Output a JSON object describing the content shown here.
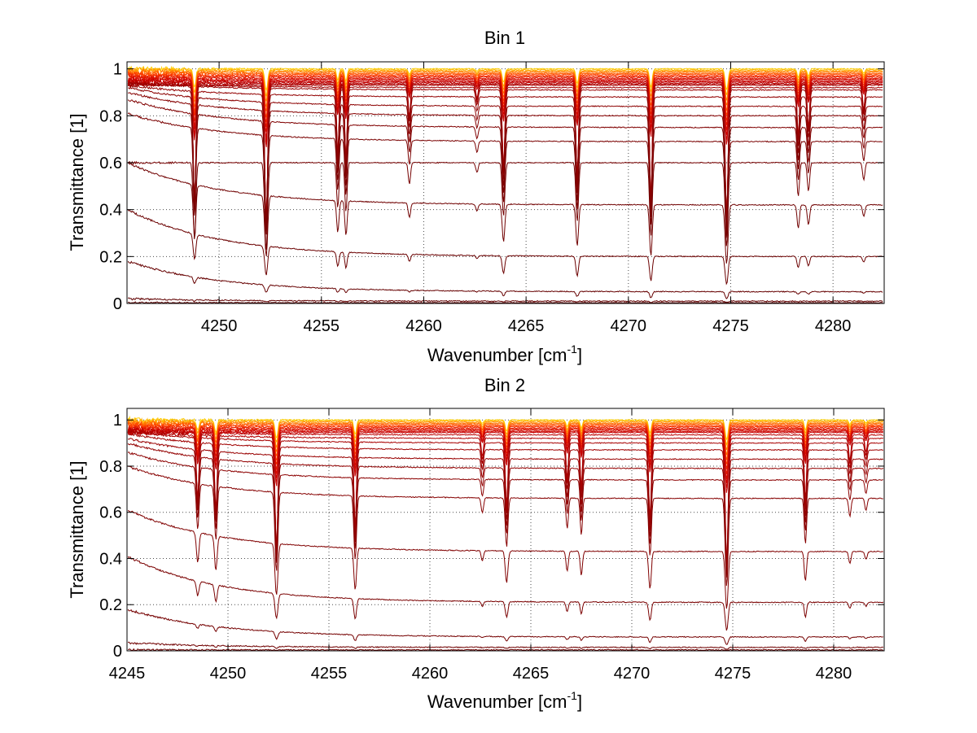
{
  "chart_data": [
    {
      "type": "line",
      "title": "Bin 1",
      "xlabel_main": "Wavenumber [cm",
      "xlabel_sup": "-1",
      "xlabel_end": "]",
      "ylabel": "Transmittance [1]",
      "xlim": [
        4245.5,
        4282.5
      ],
      "ylim": [
        0,
        1.03
      ],
      "xticks": [
        4250,
        4255,
        4260,
        4265,
        4270,
        4275,
        4280
      ],
      "yticks": [
        0,
        0.2,
        0.4,
        0.6,
        0.8,
        1
      ],
      "ytick_labels": [
        "0",
        "0.2",
        "0.4",
        "0.6",
        "0.8",
        "1"
      ],
      "grid": true,
      "baselines": [
        1.0,
        0.995,
        0.99,
        0.985,
        0.98,
        0.975,
        0.97,
        0.965,
        0.96,
        0.955,
        0.95,
        0.945,
        0.94,
        0.935,
        0.93,
        0.92,
        0.91,
        0.88,
        0.84,
        0.8,
        0.75,
        0.69,
        0.6,
        0.42,
        0.2,
        0.05,
        0.01,
        0.003
      ],
      "left_rise": [
        0.0,
        0.0,
        0.0,
        0.0,
        0.0,
        0.0,
        0.0,
        0.0,
        0.0,
        0.0,
        0.0,
        0.0,
        0.0,
        0.0,
        0.0,
        0.02,
        0.03,
        0.05,
        0.08,
        0.1,
        0.12,
        0.12,
        0.0,
        0.18,
        0.2,
        0.13,
        0.01,
        0.0
      ],
      "lines": [
        {
          "center": 4248.8,
          "depth": 0.55,
          "width": 0.09
        },
        {
          "center": 4252.3,
          "depth": 0.62,
          "width": 0.1
        },
        {
          "center": 4255.8,
          "depth": 0.32,
          "width": 0.08
        },
        {
          "center": 4256.2,
          "depth": 0.35,
          "width": 0.08
        },
        {
          "center": 4259.3,
          "depth": 0.15,
          "width": 0.08
        },
        {
          "center": 4262.6,
          "depth": 0.07,
          "width": 0.08
        },
        {
          "center": 4263.9,
          "depth": 0.38,
          "width": 0.09
        },
        {
          "center": 4267.5,
          "depth": 0.42,
          "width": 0.09
        },
        {
          "center": 4271.1,
          "depth": 0.52,
          "width": 0.09
        },
        {
          "center": 4274.8,
          "depth": 0.6,
          "width": 0.1
        },
        {
          "center": 4278.3,
          "depth": 0.24,
          "width": 0.08
        },
        {
          "center": 4278.8,
          "depth": 0.2,
          "width": 0.08
        },
        {
          "center": 4281.5,
          "depth": 0.12,
          "width": 0.08
        }
      ],
      "colors": [
        "#ffd000",
        "#ffb000",
        "#ff9000",
        "#ff7000",
        "#ff5a00",
        "#ff4400",
        "#f43000",
        "#e82200",
        "#dd1500",
        "#d40a00",
        "#cc0500",
        "#c40000",
        "#bb0000",
        "#b00000",
        "#a80000",
        "#a00000",
        "#990000",
        "#930000",
        "#8c0000",
        "#860000",
        "#800000",
        "#7a0000",
        "#750000",
        "#700000",
        "#6b0000",
        "#660000",
        "#600000",
        "#5a0000"
      ]
    },
    {
      "type": "line",
      "title": "Bin 2",
      "xlabel_main": "Wavenumber [cm",
      "xlabel_sup": "-1",
      "xlabel_end": "]",
      "ylabel": "Transmittance [1]",
      "xlim": [
        4245,
        4282.5
      ],
      "ylim": [
        0,
        1.05
      ],
      "xticks": [
        4245,
        4250,
        4255,
        4260,
        4265,
        4270,
        4275,
        4280
      ],
      "yticks": [
        0,
        0.2,
        0.4,
        0.6,
        0.8,
        1
      ],
      "ytick_labels": [
        "0",
        "0.2",
        "0.4",
        "0.6",
        "0.8",
        "1"
      ],
      "grid": true,
      "baselines": [
        1.0,
        0.995,
        0.99,
        0.985,
        0.98,
        0.975,
        0.97,
        0.965,
        0.96,
        0.955,
        0.95,
        0.945,
        0.935,
        0.92,
        0.9,
        0.87,
        0.83,
        0.79,
        0.74,
        0.66,
        0.43,
        0.21,
        0.06,
        0.015,
        0.004
      ],
      "left_rise": [
        0.0,
        0.0,
        0.0,
        0.0,
        0.0,
        0.0,
        0.0,
        0.0,
        0.0,
        0.0,
        0.0,
        0.0,
        0.02,
        0.03,
        0.05,
        0.07,
        0.09,
        0.11,
        0.12,
        0.14,
        0.18,
        0.2,
        0.12,
        0.02,
        0.0
      ],
      "lines": [
        {
          "center": 4248.5,
          "depth": 0.3,
          "width": 0.09
        },
        {
          "center": 4249.4,
          "depth": 0.35,
          "width": 0.09
        },
        {
          "center": 4252.4,
          "depth": 0.52,
          "width": 0.1
        },
        {
          "center": 4256.3,
          "depth": 0.42,
          "width": 0.09
        },
        {
          "center": 4262.6,
          "depth": 0.1,
          "width": 0.08
        },
        {
          "center": 4263.8,
          "depth": 0.32,
          "width": 0.09
        },
        {
          "center": 4266.8,
          "depth": 0.2,
          "width": 0.08
        },
        {
          "center": 4267.5,
          "depth": 0.24,
          "width": 0.08
        },
        {
          "center": 4270.9,
          "depth": 0.38,
          "width": 0.09
        },
        {
          "center": 4274.7,
          "depth": 0.58,
          "width": 0.1
        },
        {
          "center": 4278.6,
          "depth": 0.3,
          "width": 0.08
        },
        {
          "center": 4280.8,
          "depth": 0.12,
          "width": 0.08
        },
        {
          "center": 4281.6,
          "depth": 0.08,
          "width": 0.08
        }
      ],
      "colors": [
        "#ffd000",
        "#ffb000",
        "#ff9000",
        "#ff7000",
        "#ff5a00",
        "#ff4400",
        "#f43000",
        "#e82200",
        "#dd1500",
        "#d40a00",
        "#cc0500",
        "#c40000",
        "#bb0000",
        "#b00000",
        "#a80000",
        "#a00000",
        "#990000",
        "#930000",
        "#8c0000",
        "#860000",
        "#800000",
        "#7a0000",
        "#750000",
        "#700000",
        "#6b0000"
      ]
    }
  ]
}
